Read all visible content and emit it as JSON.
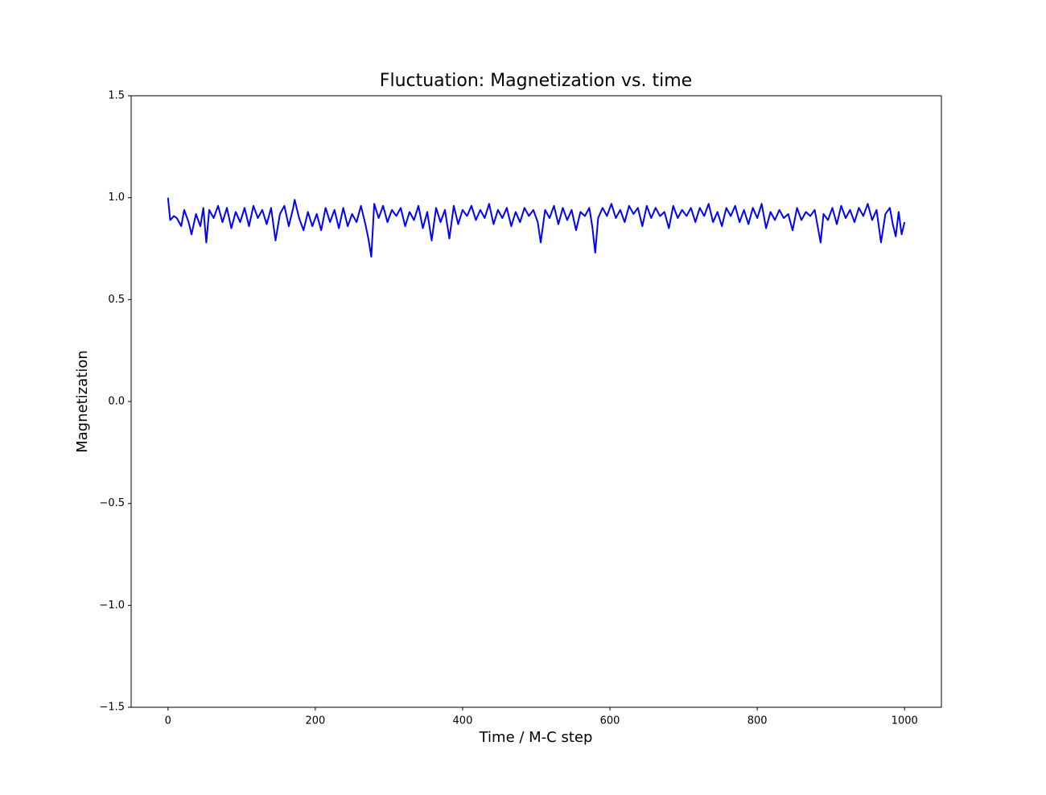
{
  "chart_data": {
    "type": "line",
    "title": "Fluctuation: Magnetization vs. time",
    "x_label": "Time / M-C step",
    "y_label": "Magnetization",
    "xlim": [
      -50,
      1050
    ],
    "ylim": [
      -1.5,
      1.5
    ],
    "xticks": [
      0,
      200,
      400,
      600,
      800,
      1000
    ],
    "yticks": [
      {
        "value": -1.5,
        "label": "−1.5"
      },
      {
        "value": -1.0,
        "label": "−1.0"
      },
      {
        "value": -0.5,
        "label": "−0.5"
      },
      {
        "value": 0.0,
        "label": "0.0"
      },
      0.5,
      {
        "value": 1.0,
        "label": "1.0"
      },
      1.5
    ],
    "grid": false,
    "series": [
      {
        "color": "#0000ff",
        "x": [
          0,
          3,
          8,
          12,
          18,
          22,
          28,
          32,
          38,
          44,
          48,
          52,
          56,
          62,
          68,
          74,
          80,
          86,
          92,
          98,
          104,
          110,
          116,
          122,
          128,
          134,
          140,
          146,
          152,
          158,
          164,
          170,
          172,
          178,
          184,
          190,
          196,
          202,
          208,
          214,
          220,
          226,
          232,
          238,
          244,
          250,
          256,
          262,
          268,
          272,
          276,
          280,
          286,
          292,
          298,
          304,
          310,
          316,
          322,
          328,
          334,
          340,
          346,
          352,
          358,
          364,
          370,
          376,
          382,
          388,
          394,
          400,
          406,
          412,
          418,
          424,
          430,
          436,
          442,
          448,
          454,
          460,
          466,
          472,
          478,
          484,
          490,
          496,
          502,
          506,
          512,
          518,
          524,
          530,
          536,
          542,
          548,
          554,
          560,
          566,
          572,
          576,
          580,
          584,
          590,
          596,
          602,
          608,
          614,
          620,
          626,
          632,
          638,
          644,
          650,
          656,
          662,
          668,
          674,
          680,
          686,
          692,
          698,
          704,
          710,
          716,
          722,
          728,
          734,
          740,
          746,
          752,
          758,
          764,
          770,
          776,
          782,
          788,
          794,
          800,
          806,
          812,
          818,
          824,
          830,
          836,
          842,
          848,
          854,
          860,
          866,
          872,
          878,
          882,
          886,
          890,
          896,
          902,
          908,
          914,
          920,
          926,
          932,
          938,
          944,
          950,
          956,
          962,
          968,
          974,
          980,
          984,
          988,
          992,
          996,
          1000
        ],
        "values": [
          1.0,
          0.89,
          0.91,
          0.9,
          0.86,
          0.94,
          0.88,
          0.82,
          0.92,
          0.86,
          0.95,
          0.78,
          0.94,
          0.9,
          0.96,
          0.88,
          0.95,
          0.85,
          0.93,
          0.88,
          0.95,
          0.86,
          0.96,
          0.9,
          0.94,
          0.87,
          0.95,
          0.79,
          0.92,
          0.96,
          0.86,
          0.95,
          0.99,
          0.9,
          0.84,
          0.93,
          0.86,
          0.92,
          0.84,
          0.95,
          0.88,
          0.94,
          0.85,
          0.95,
          0.86,
          0.92,
          0.88,
          0.96,
          0.87,
          0.8,
          0.71,
          0.97,
          0.9,
          0.96,
          0.88,
          0.94,
          0.91,
          0.95,
          0.86,
          0.93,
          0.89,
          0.96,
          0.85,
          0.93,
          0.79,
          0.95,
          0.88,
          0.94,
          0.8,
          0.96,
          0.87,
          0.94,
          0.91,
          0.96,
          0.89,
          0.94,
          0.9,
          0.97,
          0.87,
          0.94,
          0.9,
          0.95,
          0.86,
          0.93,
          0.88,
          0.95,
          0.91,
          0.94,
          0.88,
          0.78,
          0.94,
          0.9,
          0.96,
          0.87,
          0.95,
          0.89,
          0.94,
          0.84,
          0.93,
          0.91,
          0.95,
          0.86,
          0.73,
          0.9,
          0.95,
          0.91,
          0.97,
          0.9,
          0.94,
          0.88,
          0.96,
          0.92,
          0.95,
          0.86,
          0.96,
          0.9,
          0.95,
          0.91,
          0.93,
          0.85,
          0.96,
          0.9,
          0.94,
          0.91,
          0.95,
          0.88,
          0.95,
          0.91,
          0.97,
          0.88,
          0.93,
          0.86,
          0.95,
          0.91,
          0.96,
          0.88,
          0.94,
          0.87,
          0.95,
          0.9,
          0.97,
          0.85,
          0.93,
          0.89,
          0.94,
          0.9,
          0.92,
          0.84,
          0.95,
          0.89,
          0.93,
          0.91,
          0.94,
          0.86,
          0.78,
          0.92,
          0.89,
          0.95,
          0.87,
          0.96,
          0.9,
          0.94,
          0.88,
          0.95,
          0.91,
          0.97,
          0.89,
          0.94,
          0.78,
          0.92,
          0.95,
          0.87,
          0.81,
          0.93,
          0.82,
          0.88
        ]
      }
    ]
  }
}
